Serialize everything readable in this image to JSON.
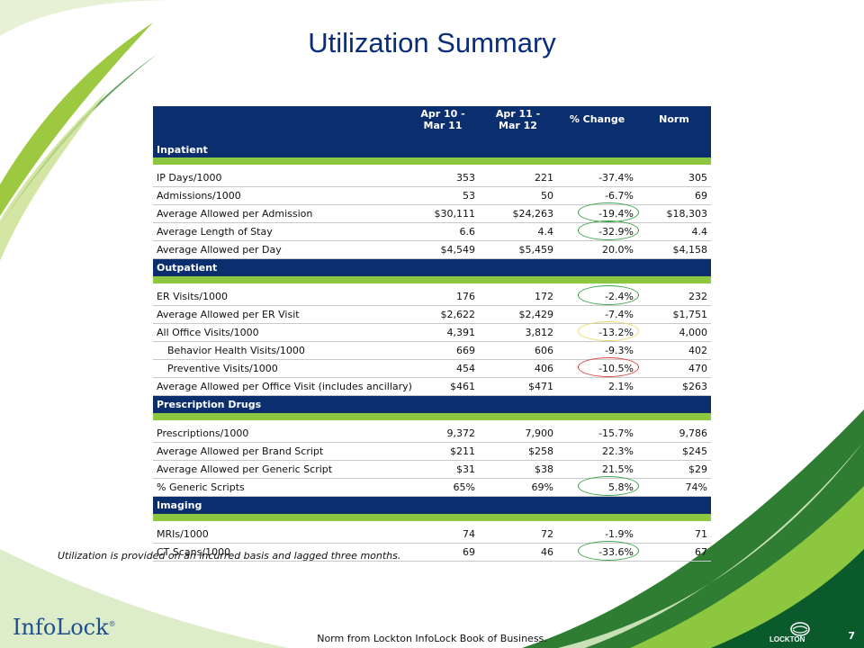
{
  "title": "Utilization Summary",
  "headers": {
    "period1": "Apr 10 -\nMar 11",
    "period2": "Apr 11 -\nMar 12",
    "change": "% Change",
    "norm": "Norm"
  },
  "sections": [
    {
      "name": "Inpatient",
      "rows": [
        {
          "label": "IP Days/1000",
          "p1": "353",
          "p2": "221",
          "chg": "-37.4%",
          "norm": "305",
          "ring": "",
          "indent": false
        },
        {
          "label": "Admissions/1000",
          "p1": "53",
          "p2": "50",
          "chg": "-6.7%",
          "norm": "69",
          "ring": "",
          "indent": false
        },
        {
          "label": "Average Allowed per Admission",
          "p1": "$30,111",
          "p2": "$24,263",
          "chg": "-19.4%",
          "norm": "$18,303",
          "ring": "green",
          "indent": false
        },
        {
          "label": "Average Length of Stay",
          "p1": "6.6",
          "p2": "4.4",
          "chg": "-32.9%",
          "norm": "4.4",
          "ring": "green",
          "indent": false
        },
        {
          "label": "Average Allowed per Day",
          "p1": "$4,549",
          "p2": "$5,459",
          "chg": "20.0%",
          "norm": "$4,158",
          "ring": "",
          "indent": false
        }
      ]
    },
    {
      "name": "Outpatient",
      "rows": [
        {
          "label": "ER Visits/1000",
          "p1": "176",
          "p2": "172",
          "chg": "-2.4%",
          "norm": "232",
          "ring": "green",
          "indent": false
        },
        {
          "label": "Average Allowed per ER Visit",
          "p1": "$2,622",
          "p2": "$2,429",
          "chg": "-7.4%",
          "norm": "$1,751",
          "ring": "",
          "indent": false
        },
        {
          "label": "All Office Visits/1000",
          "p1": "4,391",
          "p2": "3,812",
          "chg": "-13.2%",
          "norm": "4,000",
          "ring": "yellow",
          "indent": false
        },
        {
          "label": "Behavior Health Visits/1000",
          "p1": "669",
          "p2": "606",
          "chg": "-9.3%",
          "norm": "402",
          "ring": "",
          "indent": true
        },
        {
          "label": "Preventive Visits/1000",
          "p1": "454",
          "p2": "406",
          "chg": "-10.5%",
          "norm": "470",
          "ring": "red",
          "indent": true
        },
        {
          "label": "Average Allowed per Office Visit (includes ancillary)",
          "p1": "$461",
          "p2": "$471",
          "chg": "2.1%",
          "norm": "$263",
          "ring": "",
          "indent": false
        }
      ]
    },
    {
      "name": "Prescription Drugs",
      "rows": [
        {
          "label": "Prescriptions/1000",
          "p1": "9,372",
          "p2": "7,900",
          "chg": "-15.7%",
          "norm": "9,786",
          "ring": "",
          "indent": false
        },
        {
          "label": "Average Allowed per Brand Script",
          "p1": "$211",
          "p2": "$258",
          "chg": "22.3%",
          "norm": "$245",
          "ring": "",
          "indent": false
        },
        {
          "label": "Average Allowed per Generic Script",
          "p1": "$31",
          "p2": "$38",
          "chg": "21.5%",
          "norm": "$29",
          "ring": "",
          "indent": false
        },
        {
          "label": "% Generic Scripts",
          "p1": "65%",
          "p2": "69%",
          "chg": "5.8%",
          "norm": "74%",
          "ring": "green",
          "indent": false
        }
      ]
    },
    {
      "name": "Imaging",
      "rows": [
        {
          "label": "MRIs/1000",
          "p1": "74",
          "p2": "72",
          "chg": "-1.9%",
          "norm": "71",
          "ring": "",
          "indent": false
        },
        {
          "label": "CT Scans/1000",
          "p1": "69",
          "p2": "46",
          "chg": "-33.6%",
          "norm": "67",
          "ring": "green",
          "indent": false
        }
      ]
    }
  ],
  "footnote": "Utilization is provided on an incurred basis and lagged three months.",
  "bottom_note": "Norm from Lockton InfoLock Book of Business.",
  "logo_text": "InfoLock",
  "logo_mark": "®",
  "lockton_text": "LOCKTON",
  "page_number": "7",
  "colors": {
    "header_navy": "#0b2f6e",
    "band_green": "#8dc63f",
    "title_blue": "#0a2d7a",
    "ring_green": "#3aa24a",
    "ring_yellow": "#e8d66a",
    "ring_red": "#e04040"
  }
}
